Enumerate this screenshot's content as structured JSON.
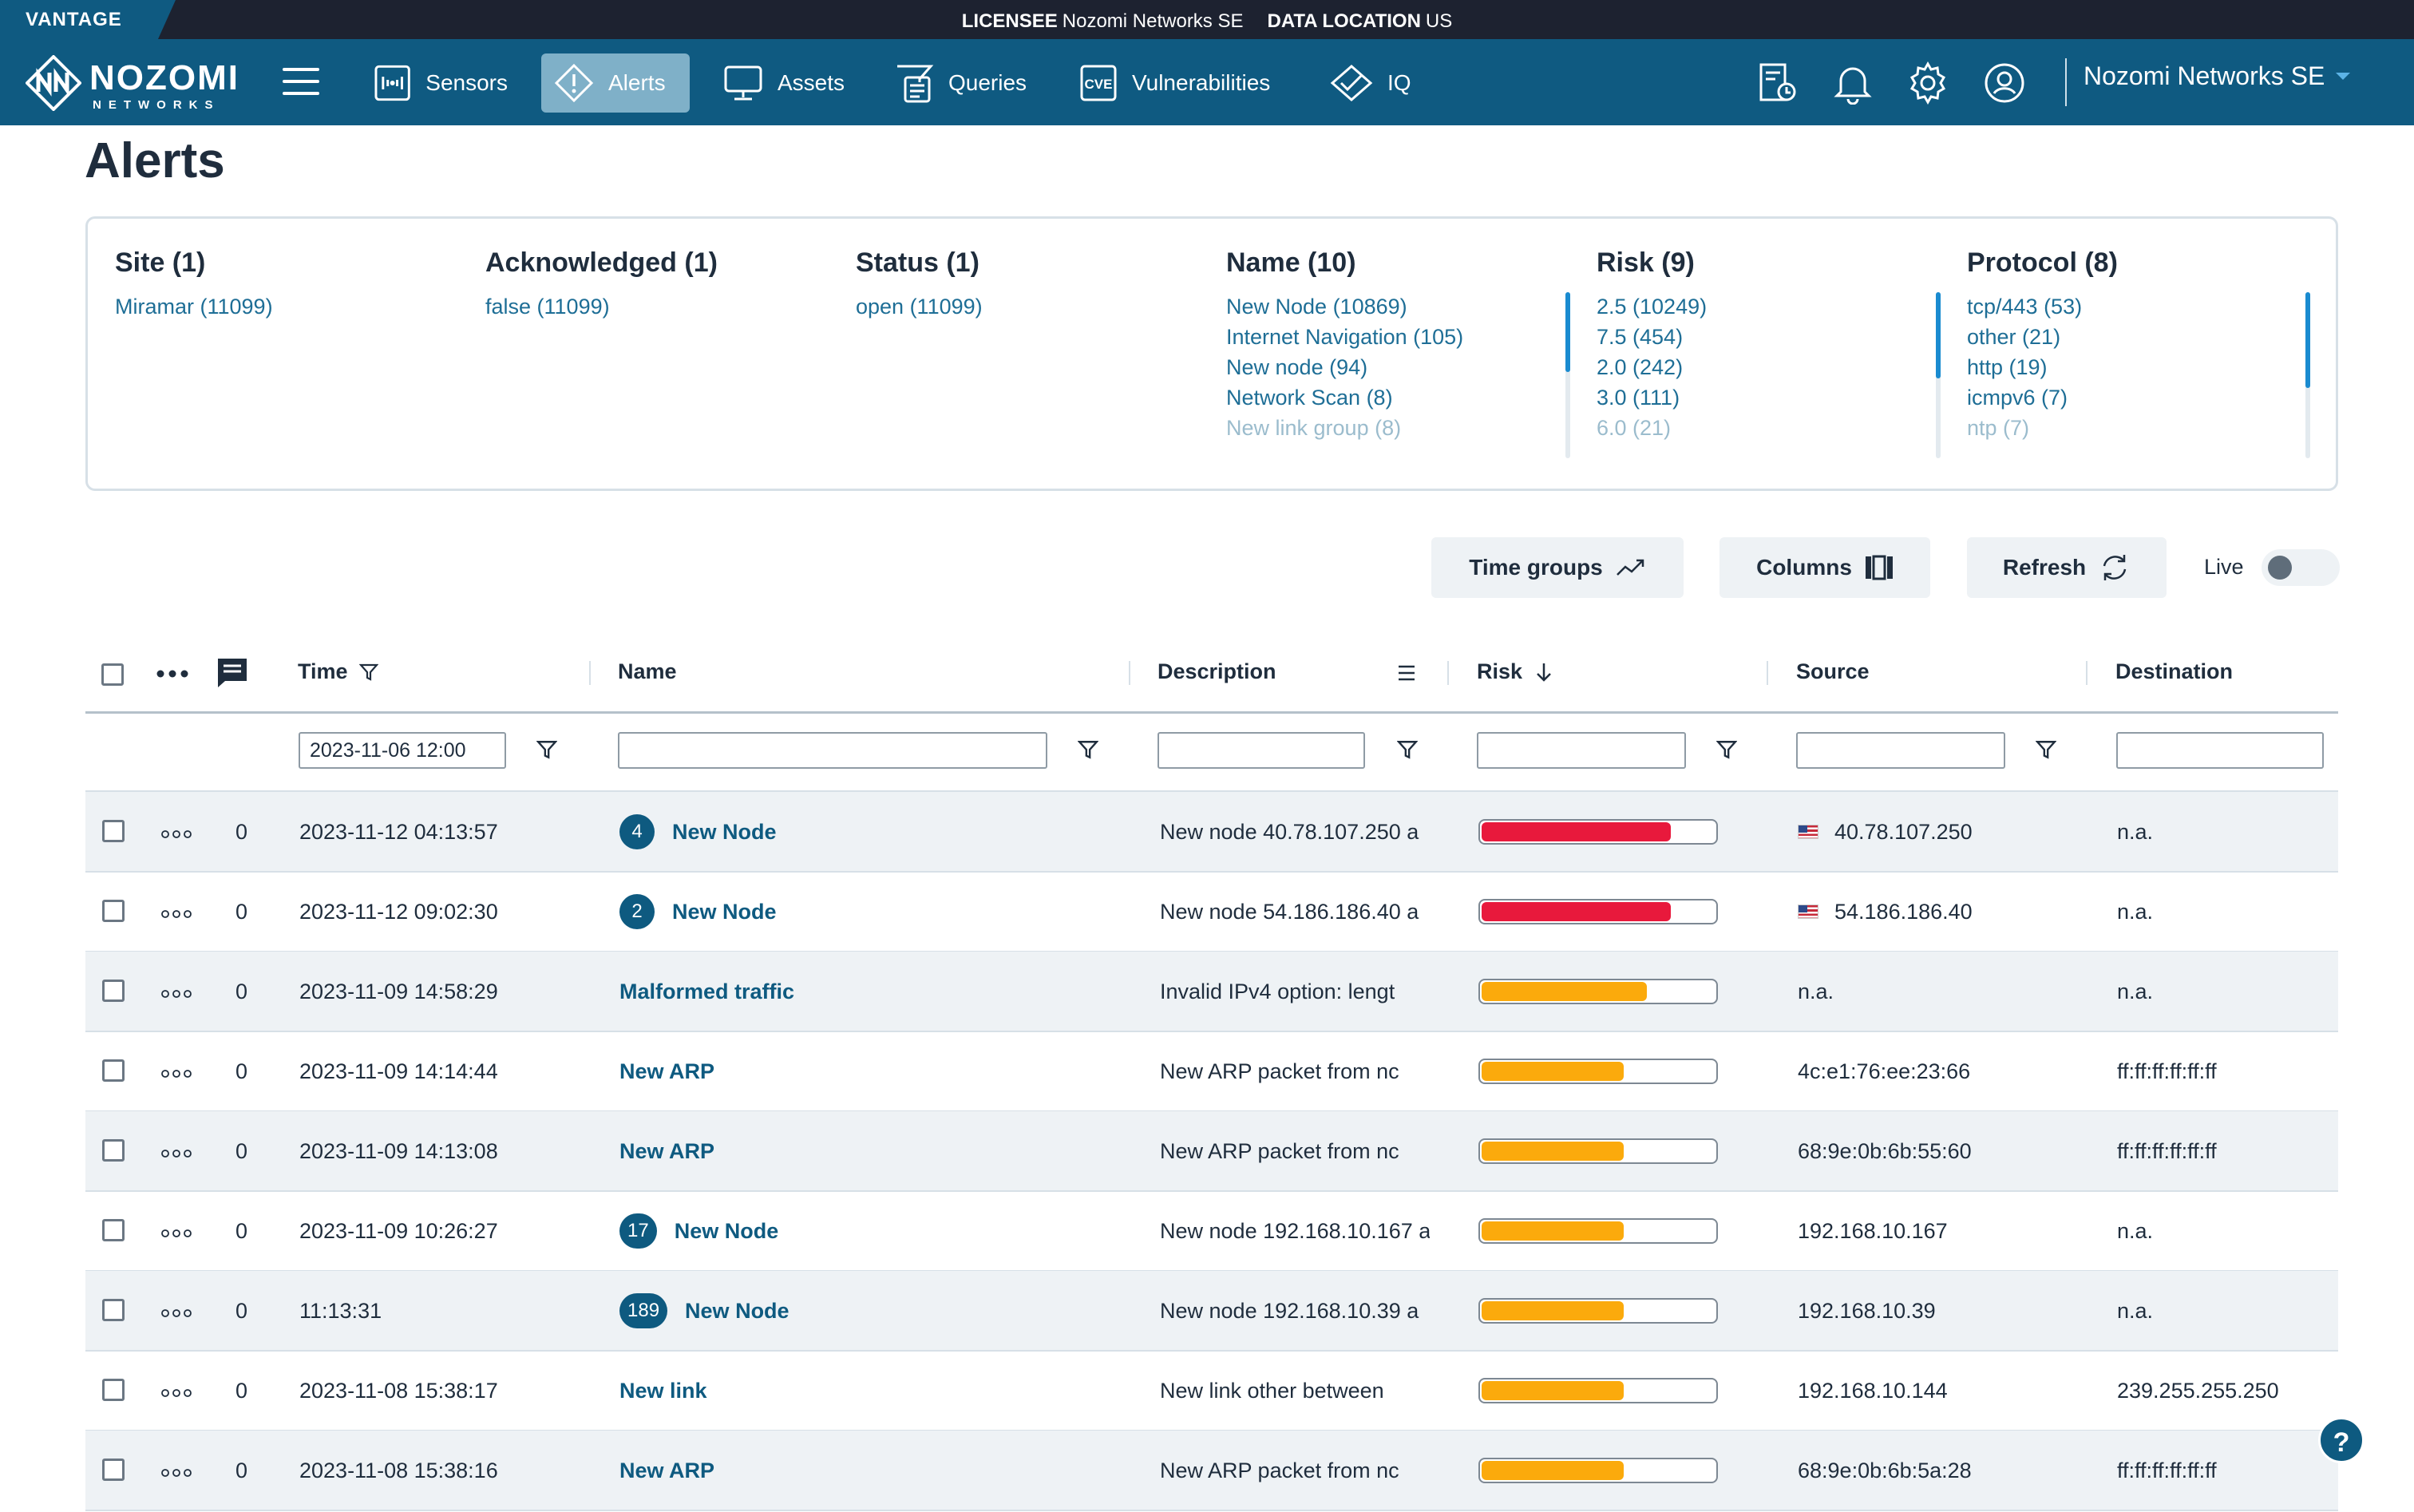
{
  "topbar": {
    "product": "VANTAGE",
    "licensee_label": "LICENSEE",
    "licensee_value": "Nozomi Networks SE",
    "location_label": "DATA LOCATION",
    "location_value": "US"
  },
  "nav": {
    "logo_line1": "NOZOMI",
    "logo_line2": "NETWORKS",
    "items": [
      {
        "label": "Sensors",
        "icon": "sensors-icon"
      },
      {
        "label": "Alerts",
        "icon": "alert-diamond-icon",
        "active": true
      },
      {
        "label": "Assets",
        "icon": "monitor-icon"
      },
      {
        "label": "Queries",
        "icon": "query-list-icon"
      },
      {
        "label": "Vulnerabilities",
        "icon": "cve-icon"
      },
      {
        "label": "IQ",
        "icon": "iq-diamond-icon"
      }
    ],
    "account": "Nozomi Networks SE"
  },
  "page": {
    "title": "Alerts"
  },
  "filters": {
    "site": {
      "title": "Site (1)",
      "values": [
        "Miramar (11099)"
      ]
    },
    "acknowledged": {
      "title": "Acknowledged (1)",
      "values": [
        "false (11099)"
      ]
    },
    "status": {
      "title": "Status (1)",
      "values": [
        "open (11099)"
      ]
    },
    "name": {
      "title": "Name (10)",
      "values": [
        "New Node (10869)",
        "Internet Navigation (105)",
        "New node (94)",
        "Network Scan (8)",
        "New link group (8)"
      ]
    },
    "risk": {
      "title": "Risk (9)",
      "values": [
        "2.5 (10249)",
        "7.5 (454)",
        "2.0 (242)",
        "3.0 (111)",
        "6.0 (21)"
      ]
    },
    "protocol": {
      "title": "Protocol (8)",
      "values": [
        "tcp/443 (53)",
        "other (21)",
        "http (19)",
        "icmpv6 (7)",
        "ntp (7)"
      ]
    }
  },
  "toolbar": {
    "time_groups": "Time groups",
    "columns": "Columns",
    "refresh": "Refresh",
    "live": "Live"
  },
  "table": {
    "headers": {
      "time": "Time",
      "name": "Name",
      "description": "Description",
      "risk": "Risk",
      "source": "Source",
      "destination": "Destination"
    },
    "filters": {
      "time": "2023-11-06 12:00"
    },
    "rows": [
      {
        "count": "0",
        "time": "2023-11-12 04:13:57",
        "badge": "4",
        "name": "New Node",
        "description": "New node 40.78.107.250 a",
        "risk": 0.8,
        "risk_color": "#e8193c",
        "source": "40.78.107.250",
        "source_flag": "us",
        "destination": "n.a."
      },
      {
        "count": "0",
        "time": "2023-11-12 09:02:30",
        "badge": "2",
        "name": "New Node",
        "description": "New node 54.186.186.40 a",
        "risk": 0.8,
        "risk_color": "#e8193c",
        "source": "54.186.186.40",
        "source_flag": "us",
        "destination": "n.a."
      },
      {
        "count": "0",
        "time": "2023-11-09 14:58:29",
        "badge": "",
        "name": "Malformed traffic",
        "description": "Invalid IPv4 option: lengt",
        "risk": 0.7,
        "risk_color": "#fbaa0c",
        "source": "n.a.",
        "source_flag": "",
        "destination": "n.a."
      },
      {
        "count": "0",
        "time": "2023-11-09 14:14:44",
        "badge": "",
        "name": "New ARP",
        "description": "New ARP packet from nc",
        "risk": 0.6,
        "risk_color": "#fbaa0c",
        "source": "4c:e1:76:ee:23:66",
        "source_flag": "",
        "destination": "ff:ff:ff:ff:ff:ff"
      },
      {
        "count": "0",
        "time": "2023-11-09 14:13:08",
        "badge": "",
        "name": "New ARP",
        "description": "New ARP packet from nc",
        "risk": 0.6,
        "risk_color": "#fbaa0c",
        "source": "68:9e:0b:6b:55:60",
        "source_flag": "",
        "destination": "ff:ff:ff:ff:ff:ff"
      },
      {
        "count": "0",
        "time": "2023-11-09 10:26:27",
        "badge": "17",
        "name": "New Node",
        "description": "New node 192.168.10.167 a",
        "risk": 0.6,
        "risk_color": "#fbaa0c",
        "source": "192.168.10.167",
        "source_flag": "",
        "destination": "n.a."
      },
      {
        "count": "0",
        "time": "11:13:31",
        "badge": "189",
        "name": "New Node",
        "description": "New node 192.168.10.39 a",
        "risk": 0.6,
        "risk_color": "#fbaa0c",
        "source": "192.168.10.39",
        "source_flag": "",
        "destination": "n.a."
      },
      {
        "count": "0",
        "time": "2023-11-08 15:38:17",
        "badge": "",
        "name": "New link",
        "description": "New link other between",
        "risk": 0.6,
        "risk_color": "#fbaa0c",
        "source": "192.168.10.144",
        "source_flag": "",
        "destination": "239.255.255.250"
      },
      {
        "count": "0",
        "time": "2023-11-08 15:38:16",
        "badge": "",
        "name": "New ARP",
        "description": "New ARP packet from nc",
        "risk": 0.6,
        "risk_color": "#fbaa0c",
        "source": "68:9e:0b:6b:5a:28",
        "source_flag": "",
        "destination": "ff:ff:ff:ff:ff:ff"
      }
    ]
  },
  "colors": {
    "brand": "#0f5a81",
    "link": "#1e6e96",
    "row_shade": "#eef2f5",
    "risk_high": "#e8193c",
    "risk_medium": "#fbaa0c"
  }
}
